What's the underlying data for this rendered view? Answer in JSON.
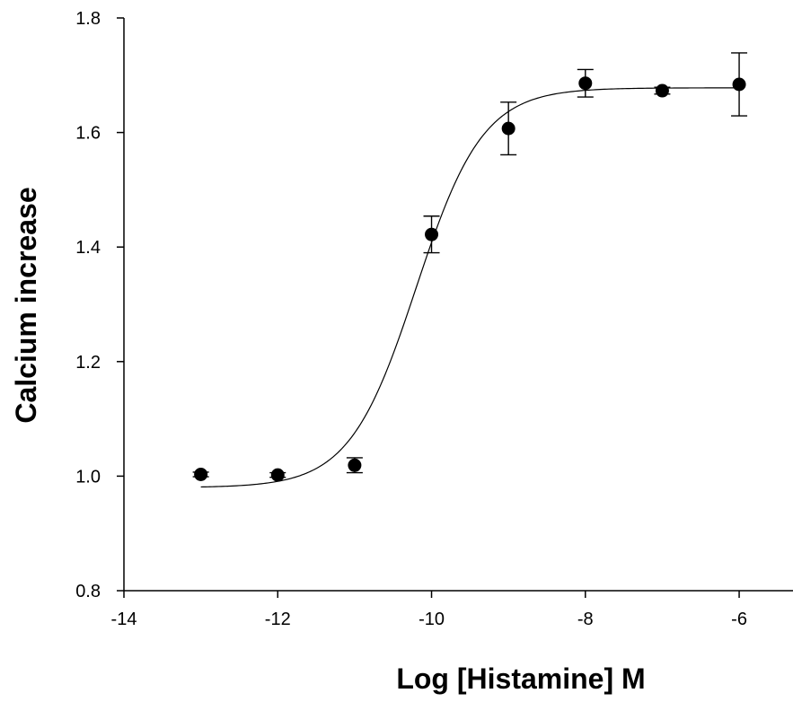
{
  "chart_data": {
    "type": "scatter",
    "title": "",
    "xlabel": "Log [Histamine] M",
    "ylabel": "Calcium increase",
    "xlim": [
      -14,
      -5.3
    ],
    "ylim": [
      0.8,
      1.8
    ],
    "x_ticks": [
      -14,
      -12,
      -10,
      -8,
      -6
    ],
    "x_tick_labels": [
      "-14",
      "-12",
      "-10",
      "-8",
      "-6"
    ],
    "y_ticks": [
      0.8,
      1.0,
      1.2,
      1.4,
      1.6,
      1.8
    ],
    "y_tick_labels": [
      "0.8",
      "1.0",
      "1.2",
      "1.4",
      "1.6",
      "1.8"
    ],
    "grid": false,
    "legend": "none",
    "series": [
      {
        "x": [
          -13,
          -12,
          -11,
          -10,
          -9,
          -8,
          -7,
          -6
        ],
        "y": [
          1.003,
          1.002,
          1.019,
          1.422,
          1.607,
          1.686,
          1.673,
          1.684
        ],
        "error": [
          0.004,
          0.004,
          0.013,
          0.032,
          0.046,
          0.024,
          0.006,
          0.055
        ],
        "marker": "circle",
        "color": "#000000"
      }
    ],
    "fit_curve": {
      "model": "sigmoidal dose-response",
      "bottom": 0.98,
      "top": 1.678,
      "logEC50": -10.2,
      "hill": 1.0,
      "x_range": [
        -13,
        -6
      ],
      "color": "#000000"
    }
  }
}
